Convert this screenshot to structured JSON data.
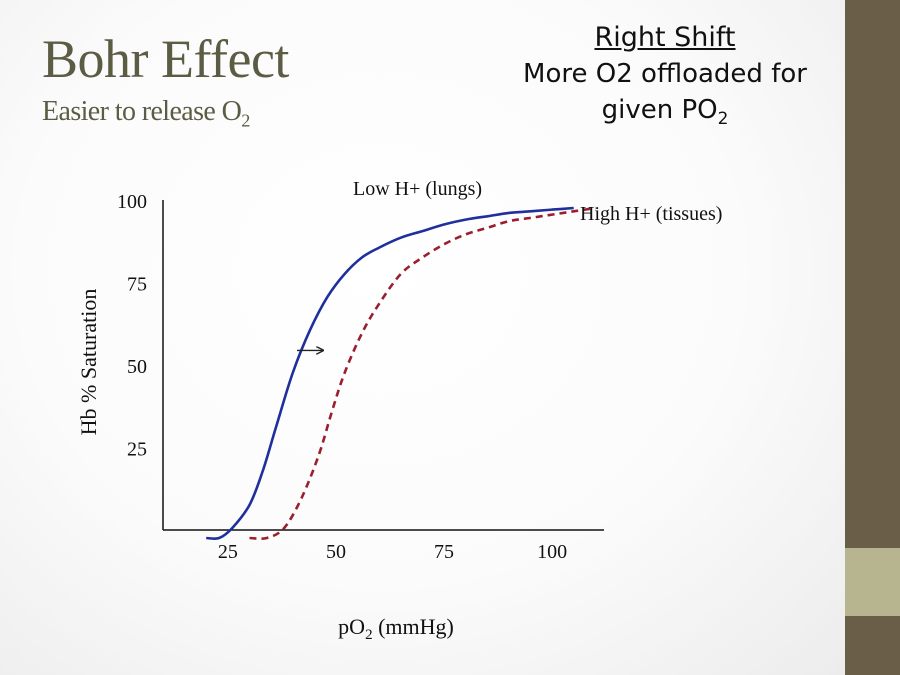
{
  "slide": {
    "title": "Bohr Effect",
    "subtitle_main": "Easier to release O",
    "subtitle_sub": "2",
    "right_shift": {
      "heading": "Right Shift",
      "line1": "More O2 offloaded for",
      "line2_main": "given PO",
      "line2_sub": "2"
    }
  },
  "colors": {
    "title": "#5c5c45",
    "sidebar": "#6b5e49",
    "sidebar_accent": "#b7b490",
    "low_h_series": "#1f2f9c",
    "high_h_series": "#9b1e2e"
  },
  "chart_data": {
    "type": "line",
    "title": "",
    "xlabel_main": "pO",
    "xlabel_sub": "2",
    "xlabel_unit": " (mmHg)",
    "ylabel": "Hb % Saturation",
    "xlim": [
      10,
      112
    ],
    "ylim": [
      0,
      100
    ],
    "x_ticks": [
      25,
      50,
      75,
      100
    ],
    "y_ticks": [
      25,
      50,
      75,
      100
    ],
    "x_tick_labels": [
      "25",
      "50",
      "75",
      "100"
    ],
    "y_tick_labels": [
      "25",
      "50",
      "75",
      "100"
    ],
    "grid": false,
    "series": [
      {
        "name": "Low H+ (lungs)",
        "style": "solid",
        "x": [
          20,
          23,
          26,
          30,
          33,
          36,
          40,
          44,
          48,
          52,
          56,
          60,
          65,
          70,
          75,
          80,
          85,
          90,
          95,
          100,
          105
        ],
        "y": [
          0,
          0,
          3,
          10,
          20,
          33,
          50,
          63,
          73,
          80,
          85,
          88,
          91,
          93,
          95,
          96.5,
          97.5,
          98.5,
          99,
          99.5,
          100
        ]
      },
      {
        "name": "High H+ (tissues)",
        "style": "dashed",
        "x": [
          30,
          34,
          38,
          42,
          46,
          49,
          52,
          56,
          60,
          65,
          70,
          75,
          80,
          85,
          90,
          95,
          100,
          105,
          110
        ],
        "y": [
          0,
          0,
          3,
          12,
          25,
          38,
          50,
          62,
          71,
          80,
          85,
          89,
          92,
          94,
          96,
          97,
          98,
          99,
          100
        ]
      }
    ],
    "annotations": [
      {
        "type": "arrow",
        "from": [
          41,
          52
        ],
        "to": [
          47,
          52
        ],
        "meaning": "shift-right"
      }
    ]
  }
}
